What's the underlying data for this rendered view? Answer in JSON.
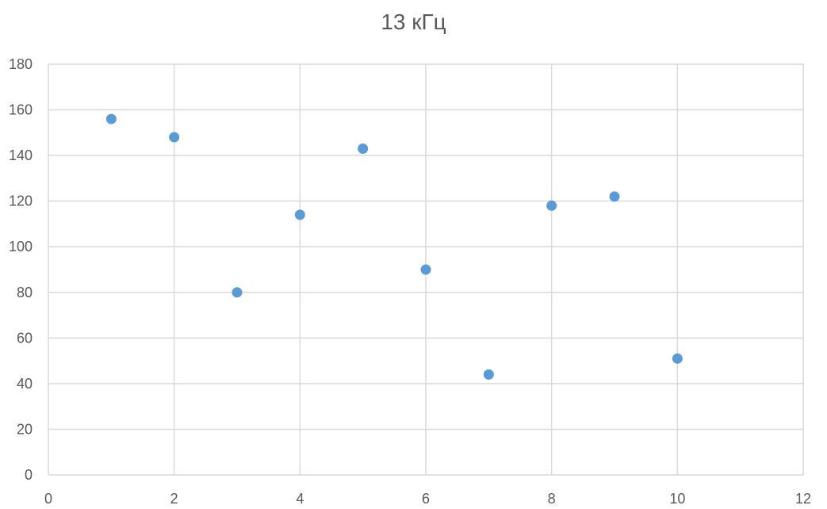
{
  "chart_data": {
    "type": "scatter",
    "title": "13 кГц",
    "xlabel": "",
    "ylabel": "",
    "xlim": [
      0,
      12
    ],
    "ylim": [
      0,
      180
    ],
    "x_ticks": [
      0,
      2,
      4,
      6,
      8,
      10,
      12
    ],
    "y_ticks": [
      0,
      20,
      40,
      60,
      80,
      100,
      120,
      140,
      160,
      180
    ],
    "grid": true,
    "legend": "none",
    "series": [
      {
        "color": "#5b9bd5",
        "x": [
          1,
          2,
          3,
          4,
          5,
          6,
          7,
          8,
          9,
          10
        ],
        "y": [
          156,
          148,
          80,
          114,
          143,
          90,
          44,
          118,
          122,
          51
        ]
      }
    ],
    "colors": {
      "grid": "#d9d9d9",
      "axis_text": "#595959",
      "title": "#595959"
    }
  }
}
